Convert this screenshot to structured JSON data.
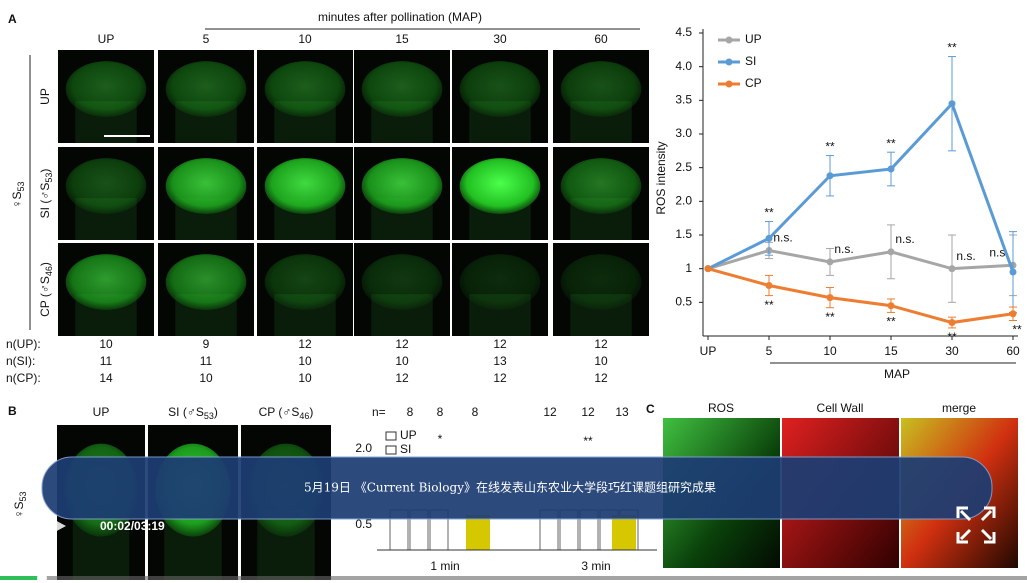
{
  "panel_a": {
    "label": "A",
    "time_axis_title": "minutes after pollination (MAP)",
    "columns": [
      "UP",
      "5",
      "10",
      "15",
      "30",
      "60"
    ],
    "rows": [
      {
        "text": "UP",
        "sub": null,
        "end": null
      },
      {
        "text": "SI (♂S",
        "sub": "53",
        "end": ")"
      },
      {
        "text": "CP (♂S",
        "sub": "46",
        "end": ")"
      }
    ],
    "female": {
      "text": "♀S",
      "sub": "53"
    },
    "counts": [
      {
        "label": "n(UP):",
        "values": [
          10,
          9,
          12,
          12,
          12,
          12
        ]
      },
      {
        "label": "n(SI):",
        "values": [
          11,
          11,
          10,
          10,
          13,
          10
        ]
      },
      {
        "label": "n(CP):",
        "values": [
          14,
          10,
          10,
          12,
          12,
          12
        ]
      }
    ]
  },
  "ros_chart": {
    "type": "line",
    "y_label": "ROS intensity",
    "x_label": "MAP",
    "categories": [
      "UP",
      "5",
      "10",
      "15",
      "30",
      "60"
    ],
    "ylim": [
      0,
      4.5
    ],
    "yticks": [
      0.5,
      1,
      1.5,
      {
        "value": 2,
        "label": "2.0"
      },
      2.5,
      {
        "value": 3,
        "label": "3.0"
      },
      3.5,
      {
        "value": 4,
        "label": "4.0"
      },
      4.5
    ],
    "series": [
      {
        "name": "UP",
        "color": "#a6a6a6",
        "values": [
          1,
          1.27,
          1.1,
          1.25,
          1,
          1.05
        ],
        "errors": [
          0,
          0.12,
          0.2,
          0.4,
          0.5,
          0.45
        ],
        "annotations": [
          null,
          "n.s.",
          "n.s.",
          "n.s.",
          "n.s.",
          "n.s."
        ]
      },
      {
        "name": "SI",
        "color": "#5b9bd5",
        "values": [
          1,
          1.45,
          2.38,
          2.48,
          3.45,
          0.95
        ],
        "errors": [
          0,
          0.25,
          0.3,
          0.25,
          0.7,
          0.6
        ],
        "annotations": [
          null,
          "**",
          "**",
          "**",
          "**",
          null
        ]
      },
      {
        "name": "CP",
        "color": "#ed7d31",
        "values": [
          1,
          0.75,
          0.57,
          0.45,
          0.2,
          0.33
        ],
        "errors": [
          0,
          0.15,
          0.15,
          0.1,
          0.08,
          0.1
        ],
        "annotations": [
          null,
          "**",
          "**",
          "**",
          "**",
          "**"
        ]
      }
    ]
  },
  "panel_b": {
    "label": "B",
    "columns": [
      {
        "text": "UP",
        "sub": null,
        "end": null
      },
      {
        "text": "SI (♂S",
        "sub": "53",
        "end": ")"
      },
      {
        "text": "CP (♂S",
        "sub": "46",
        "end": ")"
      }
    ],
    "female": {
      "text": "♀S",
      "sub": "53"
    },
    "n_label": "n=",
    "n_values": [
      8,
      8,
      8,
      12,
      12,
      13
    ],
    "legend": [
      "UP",
      "SI"
    ],
    "yticks": [
      "2.0",
      "0.5"
    ],
    "groups": [
      "1 min",
      "3 min"
    ],
    "stars": [
      "*",
      "**"
    ]
  },
  "panel_c": {
    "label": "C",
    "columns": [
      "ROS",
      "Cell Wall",
      "merge"
    ]
  },
  "player": {
    "caption": "5月19日 《Current Biology》在线发表山东农业大学段巧红课题组研究成果",
    "time": "00:02/03:19"
  }
}
